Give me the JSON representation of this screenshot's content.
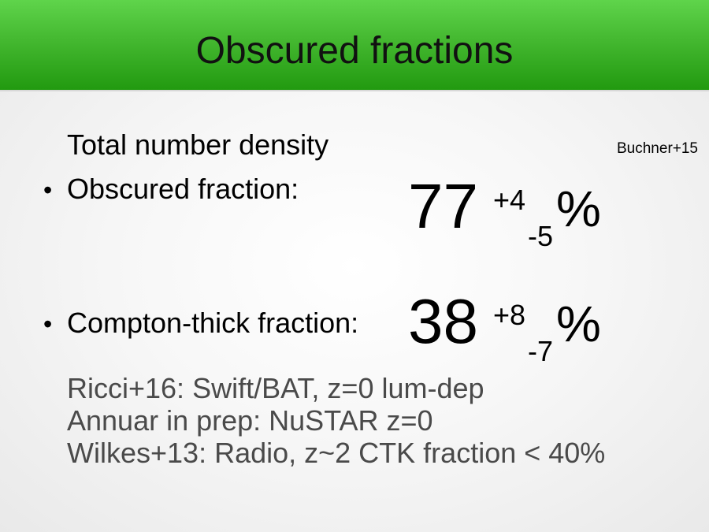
{
  "slide": {
    "title": "Obscured fractions",
    "subheading": "Total number density",
    "citation": "Buchner+15",
    "bullet_glyph": "•",
    "items": [
      {
        "label": "Obscured fraction:",
        "value": "77",
        "plus": "+4",
        "minus": "-5",
        "unit": "%"
      },
      {
        "label": "Compton-thick fraction:",
        "value": "38",
        "plus": "+8",
        "minus": "-7",
        "unit": "%"
      }
    ],
    "references": [
      "Ricci+16: Swift/BAT, z=0 lum-dep",
      "Annuar in prep: NuSTAR z=0",
      "Wilkes+13: Radio, z~2 CTK fraction < 40%"
    ],
    "colors": {
      "title_bar": "#44b830",
      "reference_text": "#4a4a4a"
    }
  }
}
